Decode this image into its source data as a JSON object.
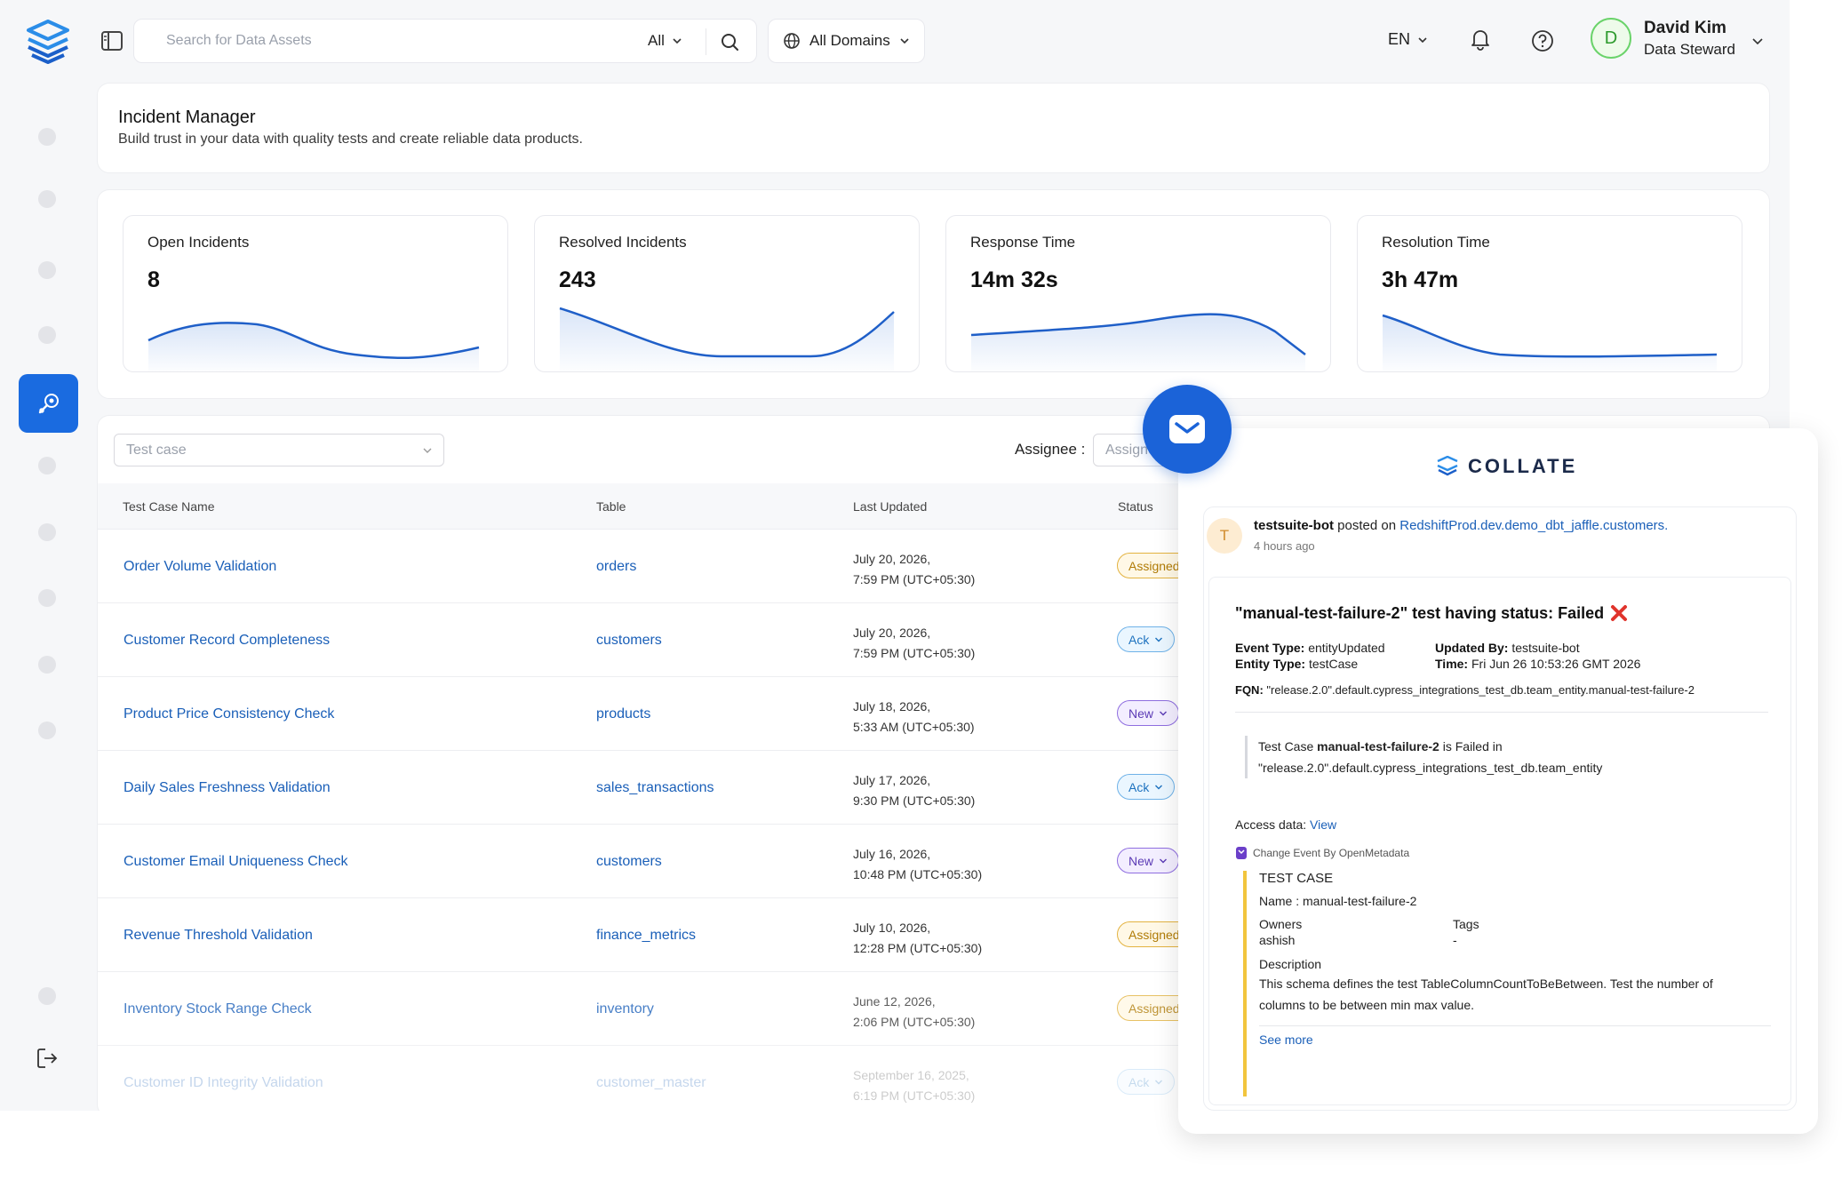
{
  "search": {
    "placeholder": "Search for Data Assets",
    "filter": "All"
  },
  "domains": {
    "label": "All Domains"
  },
  "header_right": {
    "language": "EN"
  },
  "user": {
    "initial": "D",
    "name": "David Kim",
    "role": "Data Steward"
  },
  "page": {
    "title": "Incident Manager",
    "subtitle": "Build trust in your data with quality tests and create reliable data products."
  },
  "metrics": [
    {
      "label": "Open Incidents",
      "value": "8"
    },
    {
      "label": "Resolved Incidents",
      "value": "243"
    },
    {
      "label": "Response Time",
      "value": "14m 32s"
    },
    {
      "label": "Resolution Time",
      "value": "3h 47m"
    }
  ],
  "filters": {
    "test_case_placeholder": "Test case",
    "assignee_label": "Assignee :",
    "assignee_placeholder": "Assignee"
  },
  "table": {
    "columns": [
      "Test Case Name",
      "Table",
      "Last Updated",
      "Status"
    ],
    "rows": [
      {
        "name": "Order Volume Validation",
        "table": "orders",
        "date": "July 20, 2026,",
        "time": "7:59 PM (UTC+05:30)",
        "status": "Assigned"
      },
      {
        "name": "Customer Record Completeness",
        "table": "customers",
        "date": "July 20, 2026,",
        "time": "7:59 PM (UTC+05:30)",
        "status": "Ack"
      },
      {
        "name": "Product Price Consistency Check",
        "table": "products",
        "date": "July 18, 2026,",
        "time": "5:33 AM (UTC+05:30)",
        "status": "New"
      },
      {
        "name": "Daily Sales Freshness Validation",
        "table": "sales_transactions",
        "date": "July 17, 2026,",
        "time": "9:30 PM (UTC+05:30)",
        "status": "Ack"
      },
      {
        "name": "Customer Email Uniqueness Check",
        "table": "customers",
        "date": "July 16, 2026,",
        "time": "10:48 PM (UTC+05:30)",
        "status": "New"
      },
      {
        "name": "Revenue Threshold Validation",
        "table": "finance_metrics",
        "date": "July 10, 2026,",
        "time": "12:28 PM (UTC+05:30)",
        "status": "Assigned"
      },
      {
        "name": "Inventory Stock Range Check",
        "table": "inventory",
        "date": "June 12, 2026,",
        "time": "2:06 PM (UTC+05:30)",
        "status": "Assigned"
      },
      {
        "name": "Customer ID Integrity Validation",
        "table": "customer_master",
        "date": "September 16, 2025,",
        "time": "6:19 PM (UTC+05:30)",
        "status": "Ack"
      }
    ]
  },
  "email": {
    "brand": "COLLATE",
    "avatar_initial": "T",
    "poster": "testsuite-bot",
    "posted_on": "posted on",
    "entity_link": "RedshiftProd.dev.demo_dbt_jaffle.customers.",
    "time_ago": "4 hours ago",
    "title": "\"manual-test-failure-2\" test having status: Failed",
    "event_type_label": "Event Type:",
    "event_type": "entityUpdated",
    "updated_by_label": "Updated By:",
    "updated_by": "testsuite-bot",
    "entity_type_label": "Entity Type:",
    "entity_type": "testCase",
    "time_label": "Time:",
    "time": "Fri Jun 26 10:53:26 GMT 2026",
    "fqn_label": "FQN:",
    "fqn": "\"release.2.0\".default.cypress_integrations_test_db.team_entity.manual-test-failure-2",
    "quote_prefix": "Test Case",
    "quote_name": "manual-test-failure-2",
    "quote_mid": "is Failed in",
    "quote_line2": "\"release.2.0\".default.cypress_integrations_test_db.team_entity",
    "access_label": "Access data:",
    "access_link": "View",
    "change_event": "Change Event By OpenMetadata",
    "section": "TEST CASE",
    "name_label": "Name :",
    "name_value": "manual-test-failure-2",
    "owners_label": "Owners",
    "owners_value": "ashish",
    "tags_label": "Tags",
    "tags_value": "-",
    "description_label": "Description",
    "description": "This schema defines the test TableColumnCountToBeBetween. Test the number of columns to be between min max value.",
    "see_more": "See more"
  },
  "colors": {
    "accent": "#1a6be0",
    "link": "#1a5fb8",
    "failed": "#e0342c"
  }
}
